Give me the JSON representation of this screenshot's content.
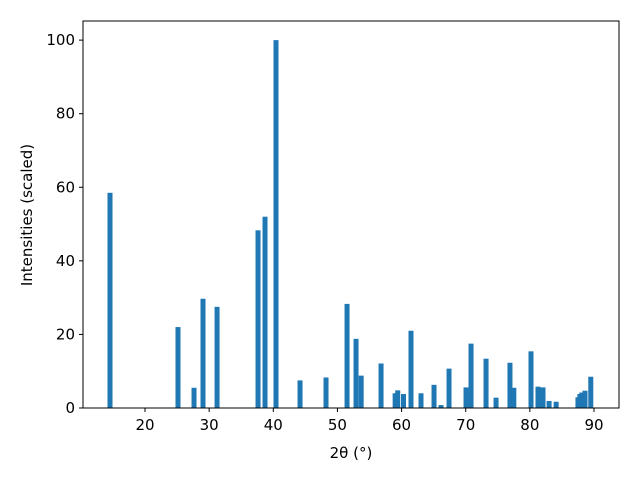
{
  "chart_data": {
    "type": "bar",
    "xlabel": "2θ (°)",
    "ylabel": "Intensities (scaled)",
    "x": [
      14.54,
      25.14,
      27.64,
      29.04,
      31.23,
      37.62,
      38.71,
      40.42,
      44.17,
      48.22,
      51.5,
      52.9,
      53.7,
      56.8,
      59.0,
      59.4,
      60.3,
      61.47,
      63.03,
      65.06,
      66.15,
      67.4,
      70.05,
      70.83,
      73.17,
      74.73,
      76.9,
      77.5,
      80.18,
      81.27,
      82.05,
      83.0,
      84.1,
      87.5,
      87.8,
      88.1,
      88.6,
      89.5
    ],
    "values": [
      58.5,
      22,
      5.5,
      29.7,
      27.5,
      48.3,
      52,
      100,
      7.5,
      8.3,
      28.3,
      18.8,
      8.8,
      12.1,
      4.0,
      4.8,
      3.8,
      21,
      4,
      6.3,
      0.8,
      10.7,
      5.6,
      17.5,
      13.4,
      2.8,
      12.3,
      5.5,
      15.4,
      5.8,
      5.6,
      1.9,
      1.7,
      2.9,
      3.8,
      4.2,
      4.7,
      8.5
    ],
    "color": "#1f77b4",
    "xlim": [
      10.33,
      93.9
    ],
    "ylim": [
      0,
      105.2
    ],
    "xticks": [
      20,
      30,
      40,
      50,
      60,
      70,
      80,
      90
    ],
    "yticks": [
      0,
      20,
      40,
      60,
      80,
      100
    ]
  }
}
